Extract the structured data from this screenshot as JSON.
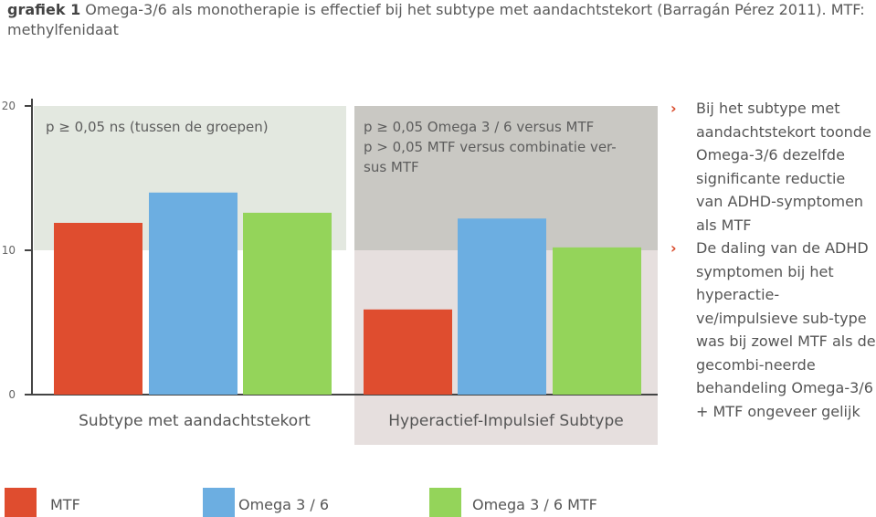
{
  "caption": {
    "bold": "grafiek 1",
    "text": "Omega-3/6 als monotherapie is effectief bij het subtype met aandachtstekort (Barragán Pérez 2011). MTF: methylfenidaat"
  },
  "chart_data": {
    "type": "bar",
    "ylim": [
      0,
      20
    ],
    "yticks": [
      0,
      10,
      20
    ],
    "categories": [
      "Subtype met aandachtstekort",
      "Hyperactief-Impulsief Subtype"
    ],
    "series": [
      {
        "name": "MTF",
        "color": "#df4d2f",
        "values": [
          11.9,
          5.9
        ]
      },
      {
        "name": "Omega 3 / 6",
        "color": "#6caee1",
        "values": [
          14.0,
          12.2
        ]
      },
      {
        "name": "Omega 3 / 6 MTF",
        "color": "#94d45a",
        "values": [
          12.6,
          10.2
        ]
      }
    ],
    "annotations": [
      {
        "lines": [
          "p ≥ 0,05 ns (tussen de groepen)"
        ]
      },
      {
        "lines": [
          "p ≥ 0,05 Omega 3 / 6 versus MTF",
          "p > 0,05 MTF versus combinatie ver-",
          "sus MTF"
        ]
      }
    ],
    "legend_position": "bottom"
  },
  "sidebar": {
    "bullet_symbol": "›",
    "items": [
      "Bij het subtype met aandachtstekort toonde Omega-3/6 dezelfde significante reductie van ADHD-symptomen als MTF",
      "De daling van de ADHD symptomen bij het hyperactie-ve/impulsieve sub-type was bij zowel MTF als de gecombi-neerde behandeling Omega-3/6 + MTF ongeveer gelijk"
    ]
  }
}
